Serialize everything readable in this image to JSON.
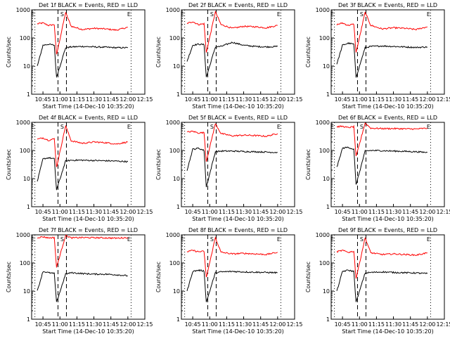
{
  "chart_data": [
    {
      "type": "line",
      "title": "Det 1f BLACK = Events, RED = LLD",
      "xlabel": "Start Time (14-Dec-10 10:35:20)",
      "ylabel": "Counts/sec",
      "ylog": true,
      "ylim": [
        1,
        1000
      ],
      "yticks": [
        "1",
        "10",
        "100",
        "1000"
      ],
      "xlim": [
        "10:35",
        "12:15"
      ],
      "xticks": [
        "10:45",
        "11:00",
        "11:15",
        "11:30",
        "11:45",
        "12:00",
        "12:15"
      ],
      "markers": [
        {
          "label": "E",
          "time": "10:36"
        },
        {
          "label": "S",
          "time": "11:02"
        },
        {
          "label": "E",
          "time": "12:01"
        }
      ],
      "series": [
        {
          "color": "#ff0000",
          "x": [
            "10:40",
            "10:45",
            "10:50",
            "10:55",
            "10:57",
            "11:05",
            "11:10",
            "11:20",
            "11:30",
            "11:40",
            "11:50",
            "12:00"
          ],
          "y": [
            320,
            340,
            280,
            300,
            25,
            800,
            260,
            200,
            220,
            210,
            190,
            240
          ]
        },
        {
          "color": "#000000",
          "x": [
            "10:40",
            "10:45",
            "10:50",
            "10:55",
            "10:57",
            "11:05",
            "11:10",
            "11:20",
            "11:30",
            "11:40",
            "11:50",
            "12:00"
          ],
          "y": [
            10,
            55,
            60,
            55,
            4,
            45,
            48,
            50,
            48,
            47,
            45,
            45
          ]
        }
      ]
    },
    {
      "type": "line",
      "title": "Det 2f BLACK = Events, RED = LLD",
      "xlabel": "Start Time (14-Dec-10 10:35:20)",
      "ylabel": "Counts/sec",
      "ylog": true,
      "ylim": [
        1,
        1000
      ],
      "yticks": [
        "1",
        "10",
        "100",
        "1000"
      ],
      "xlim": [
        "10:35",
        "12:15"
      ],
      "xticks": [
        "10:45",
        "11:00",
        "11:15",
        "11:30",
        "11:45",
        "12:00",
        "12:15"
      ],
      "markers": [
        {
          "label": "E",
          "time": "10:36"
        },
        {
          "label": "S",
          "time": "11:02"
        },
        {
          "label": "E",
          "time": "12:01"
        }
      ],
      "series": [
        {
          "color": "#ff0000",
          "x": [
            "10:40",
            "10:45",
            "10:50",
            "10:55",
            "10:57",
            "11:05",
            "11:10",
            "11:20",
            "11:30",
            "11:40",
            "11:50",
            "12:00"
          ],
          "y": [
            330,
            380,
            300,
            320,
            30,
            850,
            300,
            220,
            260,
            250,
            230,
            280
          ]
        },
        {
          "color": "#000000",
          "x": [
            "10:40",
            "10:45",
            "10:50",
            "10:55",
            "10:57",
            "11:05",
            "11:10",
            "11:20",
            "11:30",
            "11:40",
            "11:50",
            "12:00"
          ],
          "y": [
            15,
            55,
            60,
            58,
            4,
            48,
            50,
            70,
            55,
            50,
            48,
            50
          ]
        }
      ]
    },
    {
      "type": "line",
      "title": "Det 3f BLACK = Events, RED = LLD",
      "xlabel": "Start Time (14-Dec-10 10:35:20)",
      "ylabel": "Counts/sec",
      "ylog": true,
      "ylim": [
        1,
        1000
      ],
      "yticks": [
        "1",
        "10",
        "100",
        "1000"
      ],
      "xlim": [
        "10:35",
        "12:15"
      ],
      "xticks": [
        "10:45",
        "11:00",
        "11:15",
        "11:30",
        "11:45",
        "12:00",
        "12:15"
      ],
      "markers": [
        {
          "label": "E",
          "time": "10:36"
        },
        {
          "label": "S",
          "time": "11:02"
        },
        {
          "label": "E",
          "time": "12:01"
        }
      ],
      "series": [
        {
          "color": "#ff0000",
          "x": [
            "10:40",
            "10:45",
            "10:50",
            "10:55",
            "10:57",
            "11:05",
            "11:10",
            "11:20",
            "11:30",
            "11:40",
            "11:50",
            "12:00"
          ],
          "y": [
            300,
            340,
            280,
            310,
            30,
            820,
            280,
            210,
            230,
            220,
            200,
            250
          ]
        },
        {
          "color": "#000000",
          "x": [
            "10:40",
            "10:45",
            "10:50",
            "10:55",
            "10:57",
            "11:05",
            "11:10",
            "11:20",
            "11:30",
            "11:40",
            "11:50",
            "12:00"
          ],
          "y": [
            12,
            55,
            65,
            60,
            4,
            45,
            50,
            52,
            50,
            48,
            46,
            48
          ]
        }
      ]
    },
    {
      "type": "line",
      "title": "Det 4f BLACK = Events, RED = LLD",
      "xlabel": "Start Time (14-Dec-10 10:35:20)",
      "ylabel": "Counts/sec",
      "ylog": true,
      "ylim": [
        1,
        1000
      ],
      "yticks": [
        "1",
        "10",
        "100",
        "1000"
      ],
      "xlim": [
        "10:35",
        "12:15"
      ],
      "xticks": [
        "10:45",
        "11:00",
        "11:15",
        "11:30",
        "11:45",
        "12:00",
        "12:15"
      ],
      "markers": [
        {
          "label": "E",
          "time": "10:36"
        },
        {
          "label": "S",
          "time": "11:02"
        },
        {
          "label": "E",
          "time": "12:01"
        }
      ],
      "series": [
        {
          "color": "#ff0000",
          "x": [
            "10:40",
            "10:45",
            "10:50",
            "10:55",
            "10:57",
            "11:05",
            "11:10",
            "11:20",
            "11:30",
            "11:40",
            "11:50",
            "12:00"
          ],
          "y": [
            250,
            280,
            230,
            260,
            25,
            750,
            220,
            180,
            200,
            190,
            170,
            200
          ]
        },
        {
          "color": "#000000",
          "x": [
            "10:40",
            "10:45",
            "10:50",
            "10:55",
            "10:57",
            "11:05",
            "11:10",
            "11:20",
            "11:30",
            "11:40",
            "11:50",
            "12:00"
          ],
          "y": [
            8,
            50,
            55,
            50,
            4,
            42,
            45,
            45,
            44,
            43,
            42,
            40
          ]
        }
      ]
    },
    {
      "type": "line",
      "title": "Det 5f BLACK = Events, RED = LLD",
      "xlabel": "Start Time (14-Dec-10 10:35:20)",
      "ylabel": "Counts/sec",
      "ylog": true,
      "ylim": [
        1,
        1000
      ],
      "yticks": [
        "1",
        "10",
        "100",
        "1000"
      ],
      "xlim": [
        "10:35",
        "12:15"
      ],
      "xticks": [
        "10:45",
        "11:00",
        "11:15",
        "11:30",
        "11:45",
        "12:00",
        "12:15"
      ],
      "markers": [
        {
          "label": "E",
          "time": "10:36"
        },
        {
          "label": "S",
          "time": "11:02"
        },
        {
          "label": "E",
          "time": "12:01"
        }
      ],
      "series": [
        {
          "color": "#ff0000",
          "x": [
            "10:40",
            "10:45",
            "10:50",
            "10:55",
            "10:57",
            "11:05",
            "11:10",
            "11:20",
            "11:30",
            "11:40",
            "11:50",
            "12:00"
          ],
          "y": [
            450,
            480,
            420,
            430,
            40,
            900,
            400,
            330,
            350,
            340,
            320,
            400
          ]
        },
        {
          "color": "#000000",
          "x": [
            "10:40",
            "10:45",
            "10:50",
            "10:55",
            "10:57",
            "11:05",
            "11:10",
            "11:20",
            "11:30",
            "11:40",
            "11:50",
            "12:00"
          ],
          "y": [
            20,
            110,
            120,
            100,
            5,
            90,
            95,
            95,
            92,
            90,
            88,
            85
          ]
        }
      ]
    },
    {
      "type": "line",
      "title": "Det 6f BLACK = Events, RED = LLD",
      "xlabel": "Start Time (14-Dec-10 10:35:20)",
      "ylabel": "Counts/sec",
      "ylog": true,
      "ylim": [
        1,
        1000
      ],
      "yticks": [
        "1",
        "10",
        "100",
        "1000"
      ],
      "xlim": [
        "10:35",
        "12:15"
      ],
      "xticks": [
        "10:45",
        "11:00",
        "11:15",
        "11:30",
        "11:45",
        "12:00",
        "12:15"
      ],
      "markers": [
        {
          "label": "E",
          "time": "10:36"
        },
        {
          "label": "S",
          "time": "11:02"
        },
        {
          "label": "E",
          "time": "12:01"
        }
      ],
      "series": [
        {
          "color": "#ff0000",
          "x": [
            "10:40",
            "10:45",
            "10:50",
            "10:55",
            "10:57",
            "11:05",
            "11:10",
            "11:20",
            "11:30",
            "11:40",
            "11:50",
            "12:00"
          ],
          "y": [
            700,
            720,
            650,
            700,
            60,
            950,
            620,
            600,
            600,
            590,
            580,
            620
          ]
        },
        {
          "color": "#000000",
          "x": [
            "10:40",
            "10:45",
            "10:50",
            "10:55",
            "10:57",
            "11:05",
            "11:10",
            "11:20",
            "11:30",
            "11:40",
            "11:50",
            "12:00"
          ],
          "y": [
            25,
            120,
            130,
            110,
            6,
            95,
            100,
            98,
            95,
            93,
            90,
            85
          ]
        }
      ]
    },
    {
      "type": "line",
      "title": "Det 7f BLACK = Events, RED = LLD",
      "xlabel": "Start Time (14-Dec-10 10:35:20)",
      "ylabel": "Counts/sec",
      "ylog": true,
      "ylim": [
        1,
        1000
      ],
      "yticks": [
        "1",
        "10",
        "100",
        "1000"
      ],
      "xlim": [
        "10:35",
        "12:15"
      ],
      "xticks": [
        "10:45",
        "11:00",
        "11:15",
        "11:30",
        "11:45",
        "12:00",
        "12:15"
      ],
      "markers": [
        {
          "label": "E",
          "time": "10:36"
        },
        {
          "label": "S",
          "time": "11:02"
        },
        {
          "label": "E",
          "time": "12:01"
        }
      ],
      "series": [
        {
          "color": "#ff0000",
          "x": [
            "10:40",
            "10:45",
            "10:50",
            "10:55",
            "10:57",
            "11:05",
            "11:10",
            "11:20",
            "11:30",
            "11:40",
            "11:50",
            "12:00"
          ],
          "y": [
            800,
            850,
            780,
            800,
            70,
            950,
            780,
            800,
            790,
            780,
            760,
            800
          ]
        },
        {
          "color": "#000000",
          "x": [
            "10:40",
            "10:45",
            "10:50",
            "10:55",
            "10:57",
            "11:05",
            "11:10",
            "11:20",
            "11:30",
            "11:40",
            "11:50",
            "12:00"
          ],
          "y": [
            10,
            50,
            45,
            42,
            4,
            40,
            45,
            42,
            40,
            40,
            38,
            35
          ]
        }
      ]
    },
    {
      "type": "line",
      "title": "Det 8f BLACK = Events, RED = LLD",
      "xlabel": "Start Time (14-Dec-10 10:35:20)",
      "ylabel": "Counts/sec",
      "ylog": true,
      "ylim": [
        1,
        1000
      ],
      "yticks": [
        "1",
        "10",
        "100",
        "1000"
      ],
      "xlim": [
        "10:35",
        "12:15"
      ],
      "xticks": [
        "10:45",
        "11:00",
        "11:15",
        "11:30",
        "11:45",
        "12:00",
        "12:15"
      ],
      "markers": [
        {
          "label": "E",
          "time": "10:36"
        },
        {
          "label": "S",
          "time": "11:02"
        },
        {
          "label": "E",
          "time": "12:01"
        }
      ],
      "series": [
        {
          "color": "#ff0000",
          "x": [
            "10:40",
            "10:45",
            "10:50",
            "10:55",
            "10:57",
            "11:05",
            "11:10",
            "11:20",
            "11:30",
            "11:40",
            "11:50",
            "12:00"
          ],
          "y": [
            250,
            280,
            250,
            260,
            30,
            800,
            240,
            210,
            220,
            210,
            200,
            240
          ]
        },
        {
          "color": "#000000",
          "x": [
            "10:40",
            "10:45",
            "10:50",
            "10:55",
            "10:57",
            "11:05",
            "11:10",
            "11:20",
            "11:30",
            "11:40",
            "11:50",
            "12:00"
          ],
          "y": [
            10,
            50,
            55,
            52,
            4,
            45,
            48,
            50,
            48,
            47,
            46,
            45
          ]
        }
      ]
    },
    {
      "type": "line",
      "title": "Det 9f BLACK = Events, RED = LLD",
      "xlabel": "Start Time (14-Dec-10 10:35:20)",
      "ylabel": "Counts/sec",
      "ylog": true,
      "ylim": [
        1,
        1000
      ],
      "yticks": [
        "1",
        "10",
        "100",
        "1000"
      ],
      "xlim": [
        "10:35",
        "12:15"
      ],
      "xticks": [
        "10:45",
        "11:00",
        "11:15",
        "11:30",
        "11:45",
        "12:00",
        "12:15"
      ],
      "markers": [
        {
          "label": "E",
          "time": "10:36"
        },
        {
          "label": "S",
          "time": "11:02"
        },
        {
          "label": "E",
          "time": "12:01"
        }
      ],
      "series": [
        {
          "color": "#ff0000",
          "x": [
            "10:40",
            "10:45",
            "10:50",
            "10:55",
            "10:57",
            "11:05",
            "11:10",
            "11:20",
            "11:30",
            "11:40",
            "11:50",
            "12:00"
          ],
          "y": [
            250,
            280,
            240,
            260,
            28,
            780,
            230,
            200,
            210,
            200,
            190,
            230
          ]
        },
        {
          "color": "#000000",
          "x": [
            "10:40",
            "10:45",
            "10:50",
            "10:55",
            "10:57",
            "11:05",
            "11:10",
            "11:20",
            "11:30",
            "11:40",
            "11:50",
            "12:00"
          ],
          "y": [
            10,
            50,
            55,
            50,
            4,
            44,
            46,
            48,
            46,
            45,
            44,
            42
          ]
        }
      ]
    }
  ]
}
